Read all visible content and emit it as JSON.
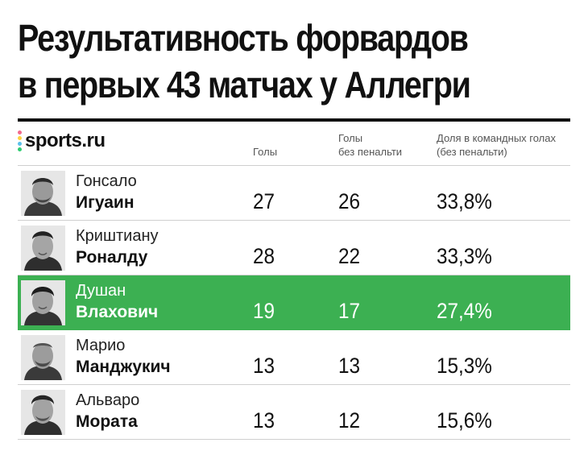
{
  "title": {
    "line1": "Результативность форвардов",
    "line2": "в первых 43 матчах у Аллегри"
  },
  "brand": {
    "name": "sports.ru",
    "dot_colors": [
      "#f26a8d",
      "#ffd23f",
      "#5bc0eb",
      "#2ecc71"
    ]
  },
  "columns": {
    "goals": "Голы",
    "goals_np_line1": "Голы",
    "goals_np_line2": "без пенальти",
    "share_line1": "Доля в командных голах",
    "share_line2": "(без пенальти)"
  },
  "highlight_color": "#3cb052",
  "rows": [
    {
      "first_name": "Гонсало",
      "last_name": "Игуаин",
      "goals": "27",
      "goals_np": "26",
      "share": "33,8%"
    },
    {
      "first_name": "Криштиану",
      "last_name": "Роналду",
      "goals": "28",
      "goals_np": "22",
      "share": "33,3%"
    },
    {
      "first_name": "Душан",
      "last_name": "Влахович",
      "goals": "19",
      "goals_np": "17",
      "share": "27,4%"
    },
    {
      "first_name": "Марио",
      "last_name": "Манджукич",
      "goals": "13",
      "goals_np": "13",
      "share": "15,3%"
    },
    {
      "first_name": "Альваро",
      "last_name": "Мората",
      "goals": "13",
      "goals_np": "12",
      "share": "15,6%"
    }
  ]
}
